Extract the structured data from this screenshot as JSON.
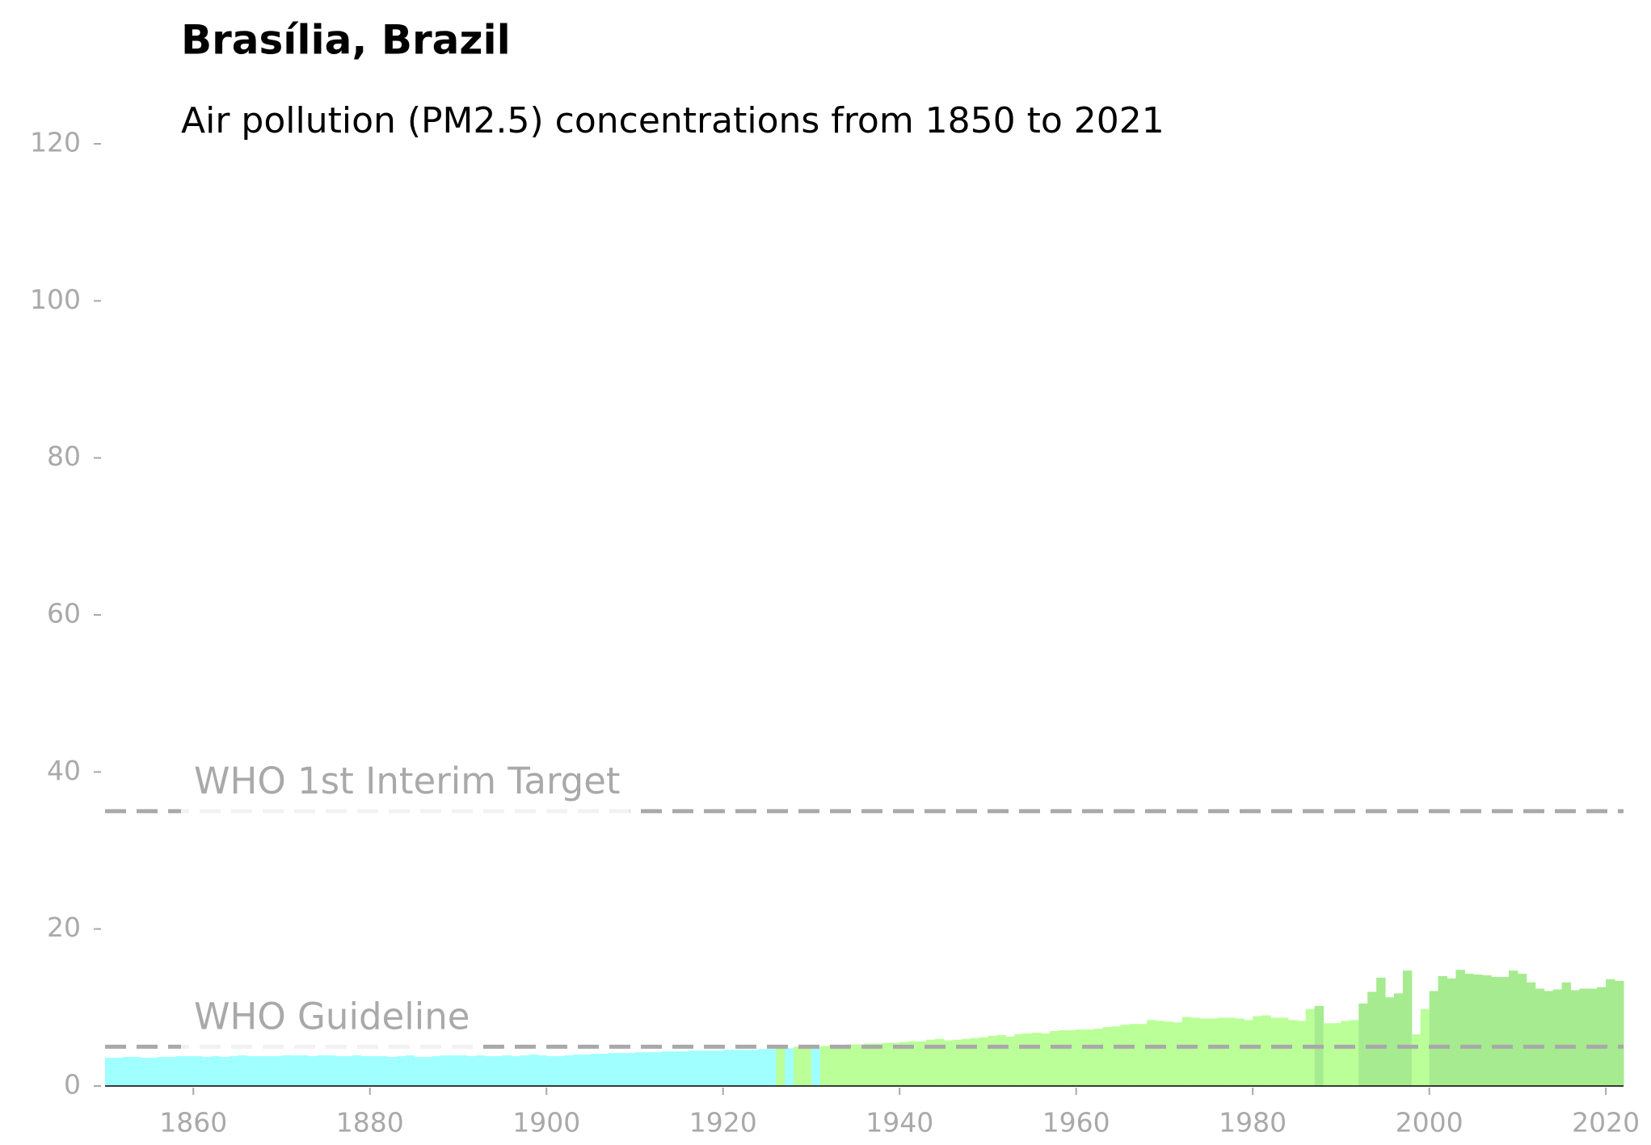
{
  "chart_data": {
    "type": "bar",
    "title": "Brasília, Brazil",
    "subtitle": "Air pollution (PM2.5) concentrations from 1850 to 2021",
    "x": [
      1850,
      1851,
      1852,
      1853,
      1854,
      1855,
      1856,
      1857,
      1858,
      1859,
      1860,
      1861,
      1862,
      1863,
      1864,
      1865,
      1866,
      1867,
      1868,
      1869,
      1870,
      1871,
      1872,
      1873,
      1874,
      1875,
      1876,
      1877,
      1878,
      1879,
      1880,
      1881,
      1882,
      1883,
      1884,
      1885,
      1886,
      1887,
      1888,
      1889,
      1890,
      1891,
      1892,
      1893,
      1894,
      1895,
      1896,
      1897,
      1898,
      1899,
      1900,
      1901,
      1902,
      1903,
      1904,
      1905,
      1906,
      1907,
      1908,
      1909,
      1910,
      1911,
      1912,
      1913,
      1914,
      1915,
      1916,
      1917,
      1918,
      1919,
      1920,
      1921,
      1922,
      1923,
      1924,
      1925,
      1926,
      1927,
      1928,
      1929,
      1930,
      1931,
      1932,
      1933,
      1934,
      1935,
      1936,
      1937,
      1938,
      1939,
      1940,
      1941,
      1942,
      1943,
      1944,
      1945,
      1946,
      1947,
      1948,
      1949,
      1950,
      1951,
      1952,
      1953,
      1954,
      1955,
      1956,
      1957,
      1958,
      1959,
      1960,
      1961,
      1962,
      1963,
      1964,
      1965,
      1966,
      1967,
      1968,
      1969,
      1970,
      1971,
      1972,
      1973,
      1974,
      1975,
      1976,
      1977,
      1978,
      1979,
      1980,
      1981,
      1982,
      1983,
      1984,
      1985,
      1986,
      1987,
      1988,
      1989,
      1990,
      1991,
      1992,
      1993,
      1994,
      1995,
      1996,
      1997,
      1998,
      1999,
      2000,
      2001,
      2002,
      2003,
      2004,
      2005,
      2006,
      2007,
      2008,
      2009,
      2010,
      2011,
      2012,
      2013,
      2014,
      2015,
      2016,
      2017,
      2018,
      2019,
      2020,
      2021
    ],
    "values": [
      3.6,
      3.6,
      3.7,
      3.7,
      3.6,
      3.6,
      3.7,
      3.7,
      3.8,
      3.8,
      3.8,
      3.7,
      3.8,
      3.7,
      3.8,
      3.9,
      3.8,
      3.8,
      3.8,
      3.8,
      3.9,
      3.9,
      3.9,
      3.8,
      3.9,
      3.9,
      3.8,
      3.8,
      3.9,
      3.8,
      3.8,
      3.8,
      3.7,
      3.8,
      3.9,
      3.7,
      3.7,
      3.8,
      3.9,
      3.9,
      3.9,
      3.8,
      3.9,
      3.8,
      3.8,
      3.9,
      3.8,
      3.9,
      4.0,
      3.9,
      3.8,
      3.8,
      3.9,
      4.0,
      4.0,
      4.1,
      4.1,
      4.2,
      4.2,
      4.2,
      4.3,
      4.3,
      4.3,
      4.4,
      4.4,
      4.4,
      4.5,
      4.5,
      4.5,
      4.5,
      4.6,
      4.6,
      4.6,
      4.6,
      4.7,
      4.7,
      5.0,
      4.8,
      5.0,
      5.1,
      4.9,
      5.1,
      5.2,
      5.2,
      5.3,
      5.3,
      5.4,
      5.4,
      5.5,
      5.5,
      5.6,
      5.7,
      5.7,
      5.9,
      6.0,
      5.8,
      5.9,
      6.0,
      6.1,
      6.2,
      6.4,
      6.5,
      6.3,
      6.6,
      6.7,
      6.8,
      6.7,
      7.0,
      7.1,
      7.1,
      7.2,
      7.2,
      7.3,
      7.5,
      7.6,
      7.8,
      7.9,
      7.9,
      8.4,
      8.3,
      8.2,
      8.1,
      8.8,
      8.7,
      8.6,
      8.6,
      8.7,
      8.7,
      8.6,
      8.4,
      8.9,
      9.0,
      8.7,
      8.7,
      8.4,
      8.3,
      9.8,
      10.2,
      8.0,
      8.0,
      8.3,
      8.4,
      10.5,
      12.0,
      13.8,
      11.3,
      11.8,
      14.7,
      6.6,
      9.8,
      12.1,
      14.0,
      13.7,
      14.8,
      14.3,
      14.2,
      14.1,
      13.9,
      13.9,
      14.7,
      14.3,
      13.2,
      12.4,
      12.1,
      12.3,
      13.2,
      12.2,
      12.4,
      12.4,
      12.6,
      13.6,
      13.4
    ],
    "colors": [
      "#a0ffff",
      "#a0ffff",
      "#a0ffff",
      "#a0ffff",
      "#a0ffff",
      "#a0ffff",
      "#a0ffff",
      "#a0ffff",
      "#a0ffff",
      "#a0ffff",
      "#a0ffff",
      "#a0ffff",
      "#a0ffff",
      "#a0ffff",
      "#a0ffff",
      "#a0ffff",
      "#a0ffff",
      "#a0ffff",
      "#a0ffff",
      "#a0ffff",
      "#a0ffff",
      "#a0ffff",
      "#a0ffff",
      "#a0ffff",
      "#a0ffff",
      "#a0ffff",
      "#a0ffff",
      "#a0ffff",
      "#a0ffff",
      "#a0ffff",
      "#a0ffff",
      "#a0ffff",
      "#a0ffff",
      "#a0ffff",
      "#a0ffff",
      "#a0ffff",
      "#a0ffff",
      "#a0ffff",
      "#a0ffff",
      "#a0ffff",
      "#a0ffff",
      "#a0ffff",
      "#a0ffff",
      "#a0ffff",
      "#a0ffff",
      "#a0ffff",
      "#a0ffff",
      "#a0ffff",
      "#a0ffff",
      "#a0ffff",
      "#a0ffff",
      "#a0ffff",
      "#a0ffff",
      "#a0ffff",
      "#a0ffff",
      "#a0ffff",
      "#a0ffff",
      "#a0ffff",
      "#a0ffff",
      "#a0ffff",
      "#a0ffff",
      "#a0ffff",
      "#a0ffff",
      "#a0ffff",
      "#a0ffff",
      "#a0ffff",
      "#a0ffff",
      "#a0ffff",
      "#a0ffff",
      "#a0ffff",
      "#a0ffff",
      "#a0ffff",
      "#a0ffff",
      "#a0ffff",
      "#a0ffff",
      "#a0ffff",
      "#bbff99",
      "#a0ffff",
      "#bbff99",
      "#bbff99",
      "#a0ffff",
      "#bbff99",
      "#bbff99",
      "#bbff99",
      "#bbff99",
      "#bbff99",
      "#bbff99",
      "#bbff99",
      "#bbff99",
      "#bbff99",
      "#bbff99",
      "#bbff99",
      "#bbff99",
      "#bbff99",
      "#bbff99",
      "#bbff99",
      "#bbff99",
      "#bbff99",
      "#bbff99",
      "#bbff99",
      "#bbff99",
      "#bbff99",
      "#bbff99",
      "#bbff99",
      "#bbff99",
      "#bbff99",
      "#bbff99",
      "#bbff99",
      "#bbff99",
      "#bbff99",
      "#bbff99",
      "#bbff99",
      "#bbff99",
      "#bbff99",
      "#bbff99",
      "#bbff99",
      "#bbff99",
      "#bbff99",
      "#bbff99",
      "#bbff99",
      "#bbff99",
      "#bbff99",
      "#bbff99",
      "#bbff99",
      "#bbff99",
      "#bbff99",
      "#bbff99",
      "#bbff99",
      "#bbff99",
      "#bbff99",
      "#bbff99",
      "#bbff99",
      "#bbff99",
      "#bbff99",
      "#bbff99",
      "#bbff99",
      "#bbff99",
      "#a6eb90",
      "#bbff99",
      "#bbff99",
      "#bbff99",
      "#bbff99",
      "#a6eb90",
      "#a6eb90",
      "#a6eb90",
      "#a6eb90",
      "#a6eb90",
      "#a6eb90",
      "#bbff99",
      "#bbff99",
      "#a6eb90",
      "#a6eb90",
      "#a6eb90",
      "#a6eb90",
      "#a6eb90",
      "#a6eb90",
      "#a6eb90",
      "#a6eb90",
      "#a6eb90",
      "#a6eb90",
      "#a6eb90",
      "#a6eb90",
      "#a6eb90",
      "#a6eb90",
      "#a6eb90",
      "#a6eb90",
      "#a6eb90",
      "#a6eb90",
      "#a6eb90",
      "#a6eb90",
      "#a6eb90",
      "#a6eb90"
    ],
    "xlim": [
      1850,
      2022
    ],
    "xticks": [
      1860,
      1880,
      1900,
      1920,
      1940,
      1960,
      1980,
      2000,
      2020
    ],
    "ylim": [
      0,
      120
    ],
    "yticks": [
      0,
      20,
      40,
      60,
      80,
      100,
      120
    ],
    "reference_lines": [
      {
        "label": "WHO 1st Interim Target",
        "value": 35,
        "color": "#a9a9a9"
      },
      {
        "label": "WHO Guideline",
        "value": 5,
        "color": "#a9a9a9"
      }
    ]
  }
}
